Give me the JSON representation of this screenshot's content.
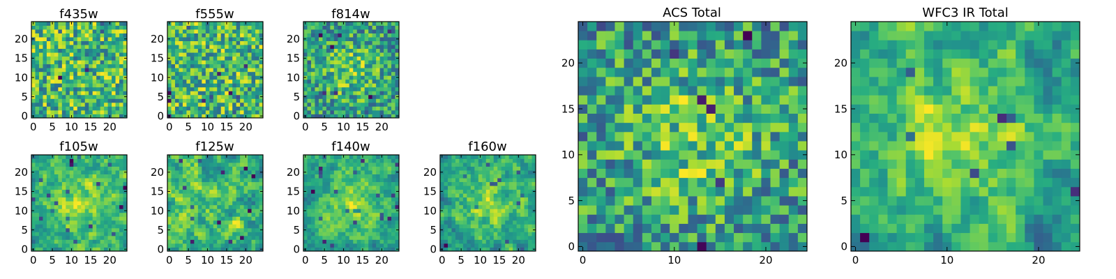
{
  "figure": {
    "colormap": "viridis"
  },
  "chart_data": [
    {
      "type": "heatmap",
      "title": "f435w",
      "grid_size": 25,
      "xlim": [
        -0.5,
        24.5
      ],
      "ylim": [
        -0.5,
        24.5
      ],
      "xticks": [
        0,
        5,
        10,
        15,
        20
      ],
      "yticks": [
        0,
        5,
        10,
        15,
        20
      ],
      "pattern": "noise",
      "seed": 11
    },
    {
      "type": "heatmap",
      "title": "f555w",
      "grid_size": 25,
      "xlim": [
        -0.5,
        24.5
      ],
      "ylim": [
        -0.5,
        24.5
      ],
      "xticks": [
        0,
        5,
        10,
        15,
        20
      ],
      "yticks": [
        0,
        5,
        10,
        15,
        20
      ],
      "pattern": "noise",
      "seed": 23
    },
    {
      "type": "heatmap",
      "title": "f814w",
      "grid_size": 25,
      "xlim": [
        -0.5,
        24.5
      ],
      "ylim": [
        -0.5,
        24.5
      ],
      "xticks": [
        0,
        5,
        10,
        15,
        20
      ],
      "yticks": [
        0,
        5,
        10,
        15,
        20
      ],
      "pattern": "noise_center",
      "seed": 37
    },
    {
      "type": "heatmap",
      "title": "f105w",
      "grid_size": 25,
      "xlim": [
        -0.5,
        24.5
      ],
      "ylim": [
        -0.5,
        24.5
      ],
      "xticks": [
        0,
        5,
        10,
        15,
        20
      ],
      "yticks": [
        0,
        5,
        10,
        15,
        20
      ],
      "pattern": "smooth_center",
      "seed": 41
    },
    {
      "type": "heatmap",
      "title": "f125w",
      "grid_size": 25,
      "xlim": [
        -0.5,
        24.5
      ],
      "ylim": [
        -0.5,
        24.5
      ],
      "xticks": [
        0,
        5,
        10,
        15,
        20
      ],
      "yticks": [
        0,
        5,
        10,
        15,
        20
      ],
      "pattern": "smooth",
      "seed": 53
    },
    {
      "type": "heatmap",
      "title": "f140w",
      "grid_size": 25,
      "xlim": [
        -0.5,
        24.5
      ],
      "ylim": [
        -0.5,
        24.5
      ],
      "xticks": [
        0,
        5,
        10,
        15,
        20
      ],
      "yticks": [
        0,
        5,
        10,
        15,
        20
      ],
      "pattern": "smooth_center",
      "seed": 67
    },
    {
      "type": "heatmap",
      "title": "f160w",
      "grid_size": 25,
      "xlim": [
        -0.5,
        24.5
      ],
      "ylim": [
        -0.5,
        24.5
      ],
      "xticks": [
        0,
        5,
        10,
        15,
        20
      ],
      "yticks": [
        0,
        5,
        10,
        15,
        20
      ],
      "pattern": "smooth_center",
      "seed": 79
    },
    {
      "type": "heatmap",
      "title": "ACS Total",
      "grid_size": 25,
      "xlim": [
        -0.5,
        24.5
      ],
      "ylim": [
        -0.5,
        24.5
      ],
      "xticks": [
        0,
        10,
        20
      ],
      "yticks": [
        0,
        5,
        10,
        15,
        20
      ],
      "pattern": "noise_center",
      "seed": 97
    },
    {
      "type": "heatmap",
      "title": "WFC3 IR Total",
      "grid_size": 25,
      "xlim": [
        -0.5,
        24.5
      ],
      "ylim": [
        -0.5,
        24.5
      ],
      "xticks": [
        0,
        10,
        20
      ],
      "yticks": [
        0,
        5,
        10,
        15,
        20
      ],
      "pattern": "smooth_center",
      "seed": 131
    }
  ]
}
